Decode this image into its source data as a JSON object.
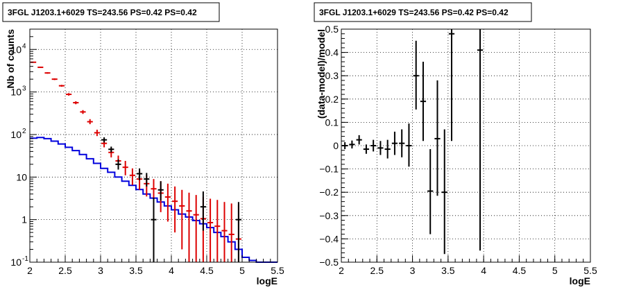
{
  "chart_data": [
    {
      "type": "step+errorbar",
      "title": "3FGL J1203.1+6029 TS=243.56 PS=0.42 PS=0.42",
      "xlabel": "logE",
      "ylabel": "Nb of counts",
      "xlim": [
        2,
        5.5
      ],
      "ylim": [
        0.1,
        30000
      ],
      "yscale": "log",
      "grid": true,
      "xticks": [
        "2",
        "2.5",
        "3",
        "3.5",
        "4",
        "4.5",
        "5",
        "5.5"
      ],
      "yticks": [
        {
          "value": 0.1,
          "label": "10",
          "exp": "-1"
        },
        {
          "value": 1,
          "label": "1",
          "exp": ""
        },
        {
          "value": 10,
          "label": "10",
          "exp": ""
        },
        {
          "value": 100,
          "label": "10",
          "exp": "2"
        },
        {
          "value": 1000,
          "label": "10",
          "exp": "3"
        },
        {
          "value": 10000,
          "label": "10",
          "exp": "4"
        }
      ],
      "bin_width": 0.1,
      "series": [
        {
          "kind": "model_step",
          "color": "#0000dd",
          "x": [
            2.05,
            2.15,
            2.25,
            2.35,
            2.45,
            2.55,
            2.65,
            2.75,
            2.85,
            2.95,
            3.05,
            3.15,
            3.25,
            3.35,
            3.45,
            3.55,
            3.65,
            3.75,
            3.85,
            3.95,
            4.05,
            4.15,
            4.25,
            4.35,
            4.45,
            4.55,
            4.65,
            4.75,
            4.85,
            4.95,
            5.05,
            5.15,
            5.25,
            5.35,
            5.45
          ],
          "y": [
            82,
            85,
            80,
            70,
            60,
            50,
            42,
            34,
            27,
            21,
            16,
            13,
            10,
            8,
            6.4,
            5.1,
            4,
            3.2,
            2.6,
            2.1,
            1.7,
            1.35,
            1.15,
            0.95,
            0.8,
            0.65,
            0.5,
            0.4,
            0.3,
            0.2,
            0.13,
            0.11,
            0.1,
            0.1,
            0.1
          ]
        },
        {
          "kind": "model_points",
          "color": "#dd0000",
          "x": [
            2.05,
            2.15,
            2.25,
            2.35,
            2.45,
            2.55,
            2.65,
            2.75,
            2.85,
            2.95,
            3.05,
            3.15,
            3.25,
            3.35,
            3.45,
            3.55,
            3.65,
            3.75,
            3.85,
            3.95,
            4.05,
            4.15,
            4.25,
            4.35,
            4.45,
            4.55,
            4.65,
            4.75,
            4.85,
            4.95
          ],
          "y": [
            5000,
            3800,
            2800,
            2000,
            1400,
            880,
            560,
            340,
            200,
            110,
            62,
            38,
            24,
            17,
            11,
            9,
            7,
            5.3,
            4.2,
            3.4,
            2.7,
            2.1,
            1.6,
            1.3,
            1.05,
            0.85,
            0.7,
            0.55,
            0.45,
            0.35
          ],
          "ylo": [
            4860,
            3680,
            2690,
            1910,
            1330,
            820,
            515,
            305,
            175,
            92,
            50,
            29,
            17,
            11,
            6.5,
            5,
            3.5,
            2.3,
            1.5,
            0.9,
            0.5,
            0.2,
            0.1,
            0.1,
            0.1,
            0.1,
            0.1,
            0.1,
            0.1,
            0.1
          ],
          "yhi": [
            5140,
            3920,
            2910,
            2090,
            1470,
            940,
            605,
            375,
            230,
            130,
            75,
            48,
            32,
            24,
            16,
            14,
            11,
            9,
            8,
            7,
            6,
            5,
            4.3,
            3.8,
            3.4,
            3.1,
            2.9,
            2.6,
            2.4,
            2.2
          ]
        },
        {
          "kind": "data_points",
          "color": "#000000",
          "x": [
            3.05,
            3.15,
            3.25,
            3.55,
            3.65,
            3.75,
            3.85,
            4.45,
            4.95
          ],
          "y": [
            75,
            45,
            20,
            12,
            9,
            1,
            5,
            2,
            1
          ],
          "ylo": [
            65,
            38,
            15,
            8.5,
            6,
            0.1,
            2.8,
            0.55,
            0.1
          ],
          "yhi": [
            86,
            52,
            26,
            16,
            12.5,
            3.3,
            8,
            4.6,
            2.6
          ]
        }
      ]
    },
    {
      "type": "errorbar",
      "title": "3FGL J1203.1+6029 TS=243.56 PS=0.42 PS=0.42",
      "xlabel": "logE",
      "ylabel": "(data-model)/model",
      "xlim": [
        2,
        5.5
      ],
      "ylim": [
        -0.5,
        0.5
      ],
      "grid": true,
      "xticks": [
        "2",
        "2.5",
        "3",
        "3.5",
        "4",
        "4.5",
        "5",
        "5.5"
      ],
      "yticks": [
        "-0.5",
        "-0.4",
        "-0.3",
        "-0.2",
        "-0.1",
        "0",
        "0.1",
        "0.2",
        "0.3",
        "0.4",
        "0.5"
      ],
      "bin_width": 0.1,
      "series": [
        {
          "kind": "residuals",
          "color": "#000000",
          "x": [
            2.05,
            2.15,
            2.25,
            2.35,
            2.45,
            2.55,
            2.65,
            2.75,
            2.85,
            2.95,
            3.05,
            3.15,
            3.25,
            3.35,
            3.45,
            3.55,
            3.95
          ],
          "y": [
            0.0,
            0.005,
            0.025,
            -0.015,
            0.0,
            -0.01,
            -0.015,
            0.01,
            0.01,
            0.0,
            0.3,
            0.19,
            -0.195,
            0.03,
            -0.2,
            0.48,
            0.41
          ],
          "ylo": [
            -0.015,
            -0.012,
            0.005,
            -0.035,
            -0.025,
            -0.04,
            -0.055,
            -0.04,
            -0.05,
            -0.09,
            0.155,
            0.02,
            -0.38,
            -0.215,
            -0.465,
            0.02,
            -0.45
          ],
          "yhi": [
            0.015,
            0.022,
            0.045,
            0.005,
            0.025,
            0.02,
            0.025,
            0.06,
            0.07,
            0.095,
            0.45,
            0.36,
            -0.015,
            0.28,
            0.07,
            0.5,
            0.5
          ]
        }
      ]
    }
  ]
}
